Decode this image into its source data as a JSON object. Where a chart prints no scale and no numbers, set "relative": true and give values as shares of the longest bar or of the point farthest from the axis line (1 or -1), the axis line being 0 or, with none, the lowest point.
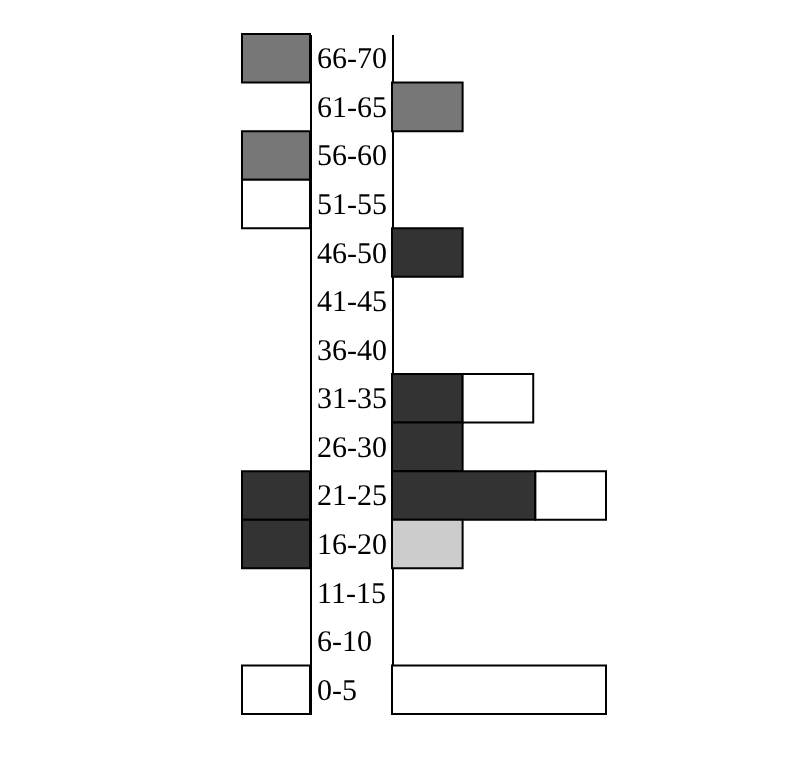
{
  "chart_data": [
    {
      "type": "bar",
      "orientation": "horizontal",
      "stacked": true,
      "relative": true,
      "tick_labels": "y",
      "categories": [
        "66-70",
        "61-65",
        "56-60",
        "51-55",
        "46-50",
        "41-45",
        "36-40",
        "31-35",
        "26-30",
        "21-25",
        "16-20",
        "11-15",
        "6-10",
        "0-5"
      ],
      "series": [
        {
          "color": "#777777",
          "values": [
            1,
            null,
            1,
            null,
            null,
            null,
            null,
            null,
            null,
            null,
            null,
            null,
            null,
            null
          ]
        },
        {
          "color": "#333333",
          "values": [
            null,
            null,
            null,
            null,
            null,
            null,
            null,
            null,
            null,
            1,
            1,
            null,
            null,
            null
          ]
        },
        {
          "color": "#ffffff",
          "values": [
            null,
            null,
            null,
            1,
            null,
            null,
            null,
            null,
            null,
            null,
            null,
            null,
            null,
            1
          ]
        }
      ]
    },
    {
      "type": "bar",
      "orientation": "horizontal",
      "stacked": true,
      "relative": true,
      "tick_labels": false,
      "categories": [
        null,
        null,
        null,
        null,
        null,
        null,
        null,
        null,
        null,
        null,
        null,
        null,
        null,
        null
      ],
      "series": [
        {
          "color": "#777777",
          "values": [
            null,
            0.33,
            null,
            null,
            null,
            null,
            null,
            null,
            null,
            null,
            null,
            null,
            null,
            null
          ]
        },
        {
          "color": "#333333",
          "values": [
            null,
            null,
            null,
            null,
            0.33,
            null,
            null,
            0.33,
            0.33,
            0.67,
            null,
            null,
            null,
            null
          ]
        },
        {
          "color": "#cccccc",
          "values": [
            null,
            null,
            null,
            null,
            null,
            null,
            null,
            null,
            null,
            null,
            0.33,
            null,
            null,
            null
          ]
        },
        {
          "color": "#ffffff",
          "values": [
            null,
            null,
            null,
            null,
            null,
            null,
            null,
            0.33,
            null,
            0.33,
            null,
            null,
            null,
            1
          ]
        }
      ]
    }
  ]
}
